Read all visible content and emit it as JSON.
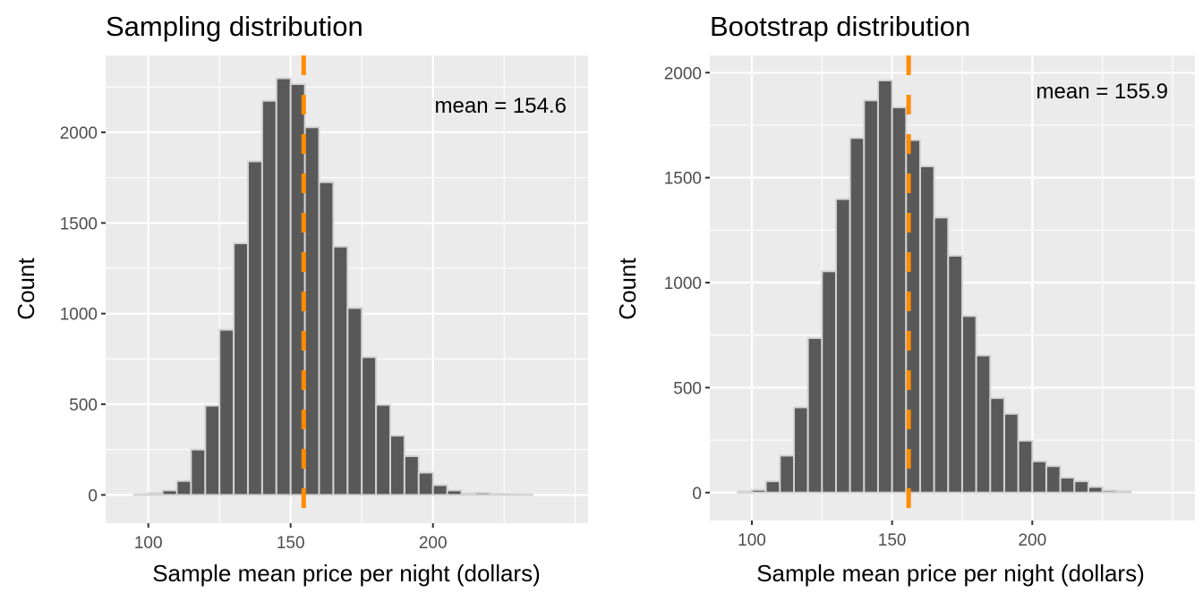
{
  "chart_data": [
    {
      "type": "bar",
      "title": "Sampling distribution",
      "xlabel": "Sample mean price per night (dollars)",
      "ylabel": "Count",
      "bin_width": 5,
      "x": [
        97.5,
        102.5,
        107.5,
        112.5,
        117.5,
        122.5,
        127.5,
        132.5,
        137.5,
        142.5,
        147.5,
        152.5,
        157.5,
        162.5,
        167.5,
        172.5,
        177.5,
        182.5,
        187.5,
        192.5,
        197.5,
        202.5,
        207.5,
        212.5,
        217.5,
        222.5,
        227.5,
        232.5
      ],
      "values": [
        2,
        10,
        25,
        77,
        250,
        492,
        911,
        1388,
        1840,
        2174,
        2298,
        2266,
        2028,
        1725,
        1370,
        1031,
        760,
        497,
        327,
        214,
        123,
        54,
        25,
        8,
        12,
        5,
        3,
        2
      ],
      "xlim": [
        85,
        254.5
      ],
      "ylim": [
        -156,
        2424
      ],
      "xticks": [
        100,
        150,
        200
      ],
      "xtick_labels": [
        "100",
        "150",
        "200"
      ],
      "yticks": [
        0,
        500,
        1000,
        1500,
        2000
      ],
      "ytick_labels": [
        "0",
        "500",
        "1000",
        "1500",
        "2000"
      ],
      "mean_line": 154.6,
      "annotation": "mean =  154.6",
      "grid": true
    },
    {
      "type": "bar",
      "title": "Bootstrap distribution",
      "xlabel": "Sample mean price per night (dollars)",
      "ylabel": "Count",
      "bin_width": 5,
      "x": [
        97.5,
        102.5,
        107.5,
        112.5,
        117.5,
        122.5,
        127.5,
        132.5,
        137.5,
        142.5,
        147.5,
        152.5,
        157.5,
        162.5,
        167.5,
        172.5,
        177.5,
        182.5,
        187.5,
        192.5,
        197.5,
        202.5,
        207.5,
        212.5,
        217.5,
        222.5,
        227.5,
        232.5
      ],
      "values": [
        5,
        13,
        54,
        176,
        406,
        736,
        1054,
        1398,
        1689,
        1868,
        1963,
        1835,
        1679,
        1554,
        1310,
        1128,
        841,
        653,
        450,
        375,
        247,
        149,
        126,
        71,
        54,
        27,
        10,
        7
      ],
      "xlim": [
        85,
        258
      ],
      "ylim": [
        -133,
        2082
      ],
      "xticks": [
        100,
        150,
        200
      ],
      "xtick_labels": [
        "100",
        "150",
        "200"
      ],
      "yticks": [
        0,
        500,
        1000,
        1500,
        2000
      ],
      "ytick_labels": [
        "0",
        "500",
        "1000",
        "1500",
        "2000"
      ],
      "mean_line": 155.9,
      "annotation": "mean =  155.9",
      "grid": true
    }
  ],
  "colors": {
    "panel": "#ebebeb",
    "bar_fill": "#595959",
    "bar_outline": "#d3d3d3",
    "mean_line": "#ff8c00",
    "grid": "#ffffff"
  }
}
